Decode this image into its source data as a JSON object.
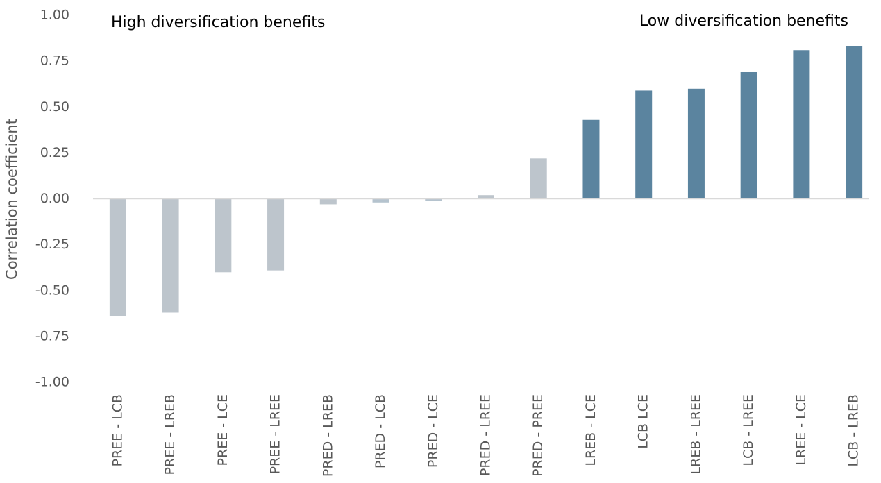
{
  "chart_data": {
    "type": "bar",
    "y_label": "Correlation coefficient",
    "annotations": [
      "High diversification benefits",
      "Low diversification benefits"
    ],
    "categories": [
      "PREE - LCB",
      "PREE - LREB",
      "PREE - LCE",
      "PREE - LREE",
      "PRED - LREB",
      "PRED - LCB",
      "PRED - LCE",
      "PRED - LREE",
      "PRED - PREE",
      "LREB - LCE",
      "LCB LCE",
      "LREB - LREE",
      "LCB - LREE",
      "LREE - LCE",
      "LCB - LREB"
    ],
    "values": [
      -0.64,
      -0.62,
      -0.4,
      -0.39,
      -0.03,
      -0.02,
      -0.01,
      0.02,
      0.22,
      0.43,
      0.59,
      0.6,
      0.69,
      0.81,
      0.83
    ],
    "colors": [
      "#bdc5cc",
      "#bdc5cc",
      "#bdc5cc",
      "#bdc5cc",
      "#bdc5cc",
      "#b5c3ce",
      "#b5c3ce",
      "#bdc5cc",
      "#bdc5cc",
      "#5b849f",
      "#5b849f",
      "#5b849f",
      "#5b849f",
      "#5b849f",
      "#5b849f"
    ],
    "ylim": [
      -1,
      1
    ],
    "yticks": [
      {
        "value": 1,
        "label": "1.00"
      },
      0.75,
      {
        "value": 0.5,
        "label": "0.50"
      },
      0.25,
      {
        "value": 0,
        "label": "0.00"
      },
      -0.25,
      {
        "value": -0.5,
        "label": "-0.50"
      },
      -0.75,
      {
        "value": -1,
        "label": "-1.00"
      }
    ],
    "grid": false
  }
}
